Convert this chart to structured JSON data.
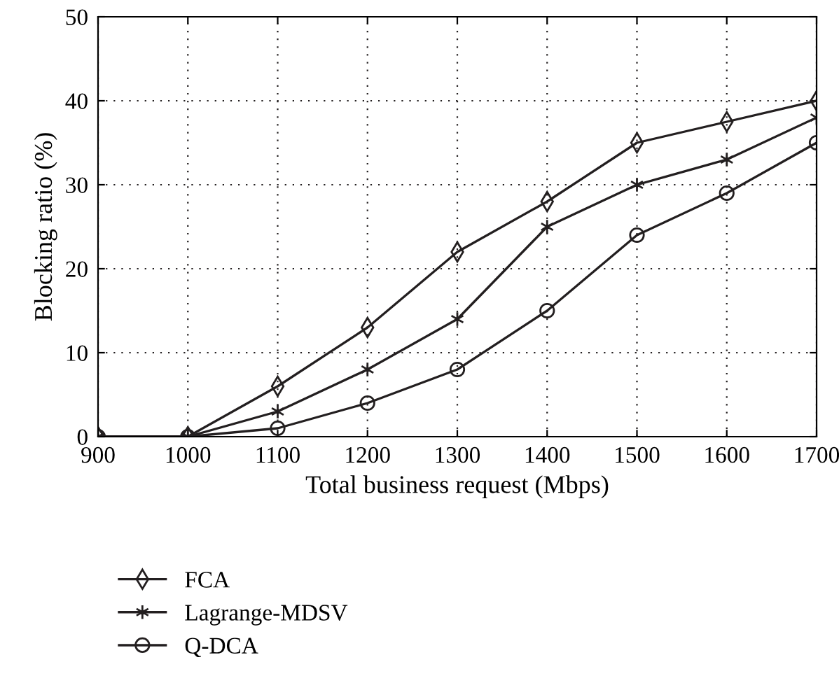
{
  "chart_data": {
    "type": "line",
    "xlabel": "Total business request (Mbps)",
    "ylabel": "Blocking ratio (%)",
    "x": [
      900,
      1000,
      1100,
      1200,
      1300,
      1400,
      1500,
      1600,
      1700
    ],
    "series": [
      {
        "name": "FCA",
        "color": "#231f20",
        "marker": "diamond",
        "values": [
          0,
          0,
          6,
          13,
          22,
          28,
          35,
          37.5,
          40
        ]
      },
      {
        "name": "Lagrange-MDSV",
        "color": "#231f20",
        "marker": "cross",
        "values": [
          0,
          0,
          3,
          8,
          14,
          25,
          30,
          33,
          38
        ]
      },
      {
        "name": "Q-DCA",
        "color": "#231f20",
        "marker": "circle",
        "values": [
          0,
          0,
          1,
          4,
          8,
          15,
          24,
          29,
          35
        ]
      }
    ],
    "xlim": [
      900,
      1700
    ],
    "ylim": [
      0,
      50
    ],
    "xticks": [
      900,
      1000,
      1100,
      1200,
      1300,
      1400,
      1500,
      1600,
      1700
    ],
    "yticks": [
      0,
      10,
      20,
      30,
      40,
      50
    ],
    "grid": true,
    "legend": "bottom",
    "line_style": "solid"
  }
}
